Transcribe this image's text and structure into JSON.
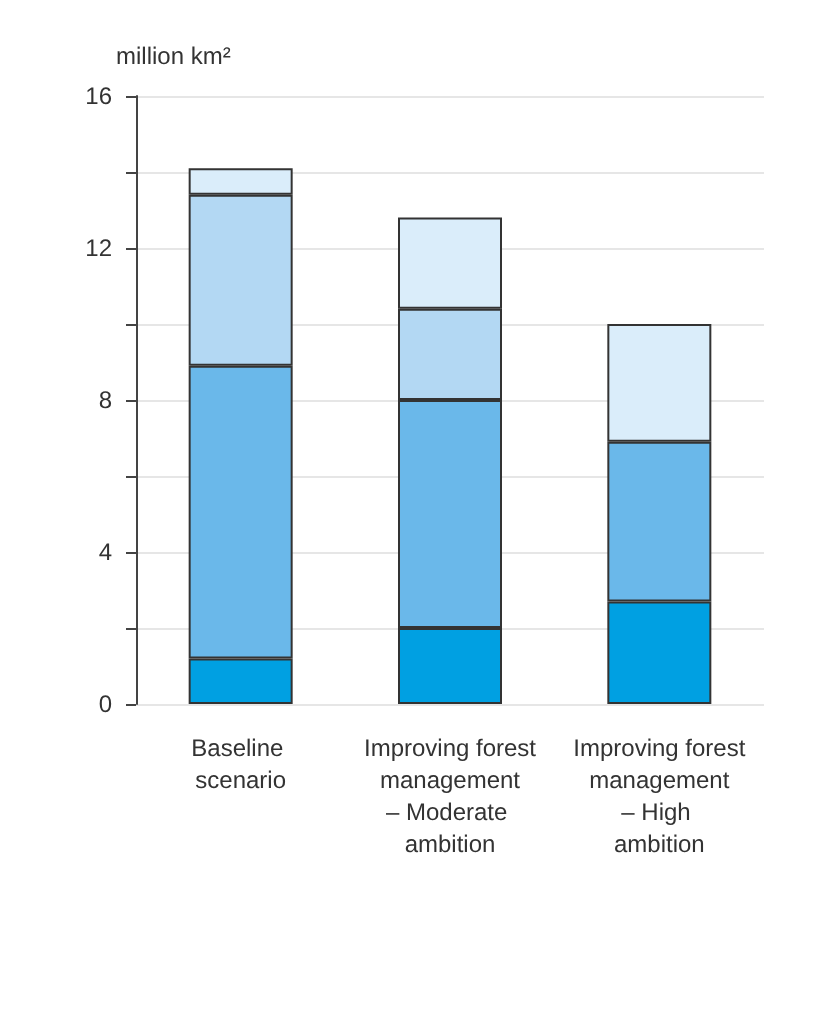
{
  "chart_data": {
    "type": "bar",
    "stacked": true,
    "ylabel": "million km²",
    "categories": [
      "Baseline scenario",
      "Improving forest management – Moderate ambition",
      "Improving forest management – High ambition"
    ],
    "series": [
      {
        "color": "#00a0e2",
        "values": [
          1.2,
          2.0,
          2.7
        ]
      },
      {
        "color": "#6ab8ea",
        "values": [
          7.7,
          6.0,
          4.2
        ]
      },
      {
        "color": "#b3d8f3",
        "values": [
          4.5,
          2.4,
          null
        ]
      },
      {
        "color": "#daedfa",
        "values": [
          0.7,
          2.4,
          3.1
        ]
      }
    ],
    "ylim": [
      0,
      16
    ],
    "yticks": [
      0,
      {
        "value": 2,
        "label": null
      },
      4,
      {
        "value": 6,
        "label": null
      },
      8,
      {
        "value": 10,
        "label": null
      },
      12,
      {
        "value": 14,
        "label": null
      },
      16
    ],
    "grid": true
  }
}
